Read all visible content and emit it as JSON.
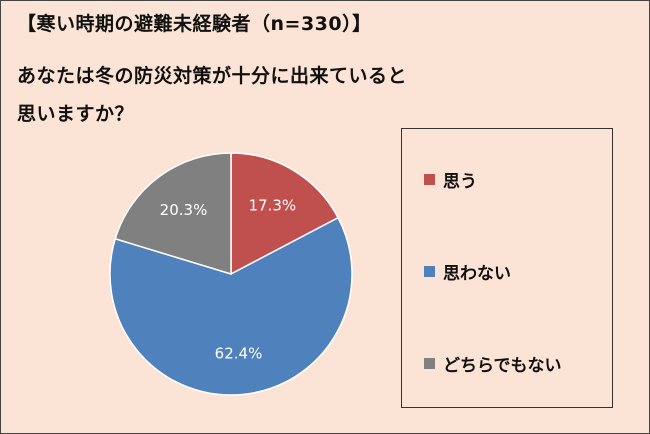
{
  "title": "【寒い時期の避難未経験者（n=330）】",
  "question": {
    "line1": "あなたは冬の防災対策が十分に出来ていると",
    "line2": "思いますか？"
  },
  "chart_data": {
    "type": "pie",
    "categories": [
      "思う",
      "思わない",
      "どちらでもない"
    ],
    "values": [
      17.3,
      62.4,
      20.3
    ],
    "value_labels": [
      "17.3%",
      "62.4%",
      "20.3%"
    ],
    "colors": [
      "#c0504d",
      "#4f81bd",
      "#808080"
    ],
    "start_angle": "12 o'clock, clockwise",
    "legend_position": "right"
  },
  "legend": {
    "items": [
      {
        "label": "思う",
        "color": "#c0504d"
      },
      {
        "label": "思わない",
        "color": "#4f81bd"
      },
      {
        "label": "どちらでもない",
        "color": "#808080"
      }
    ]
  },
  "colors": {
    "background": "#fbe4d5",
    "text": "#111111",
    "label_text": "#ffffff"
  }
}
